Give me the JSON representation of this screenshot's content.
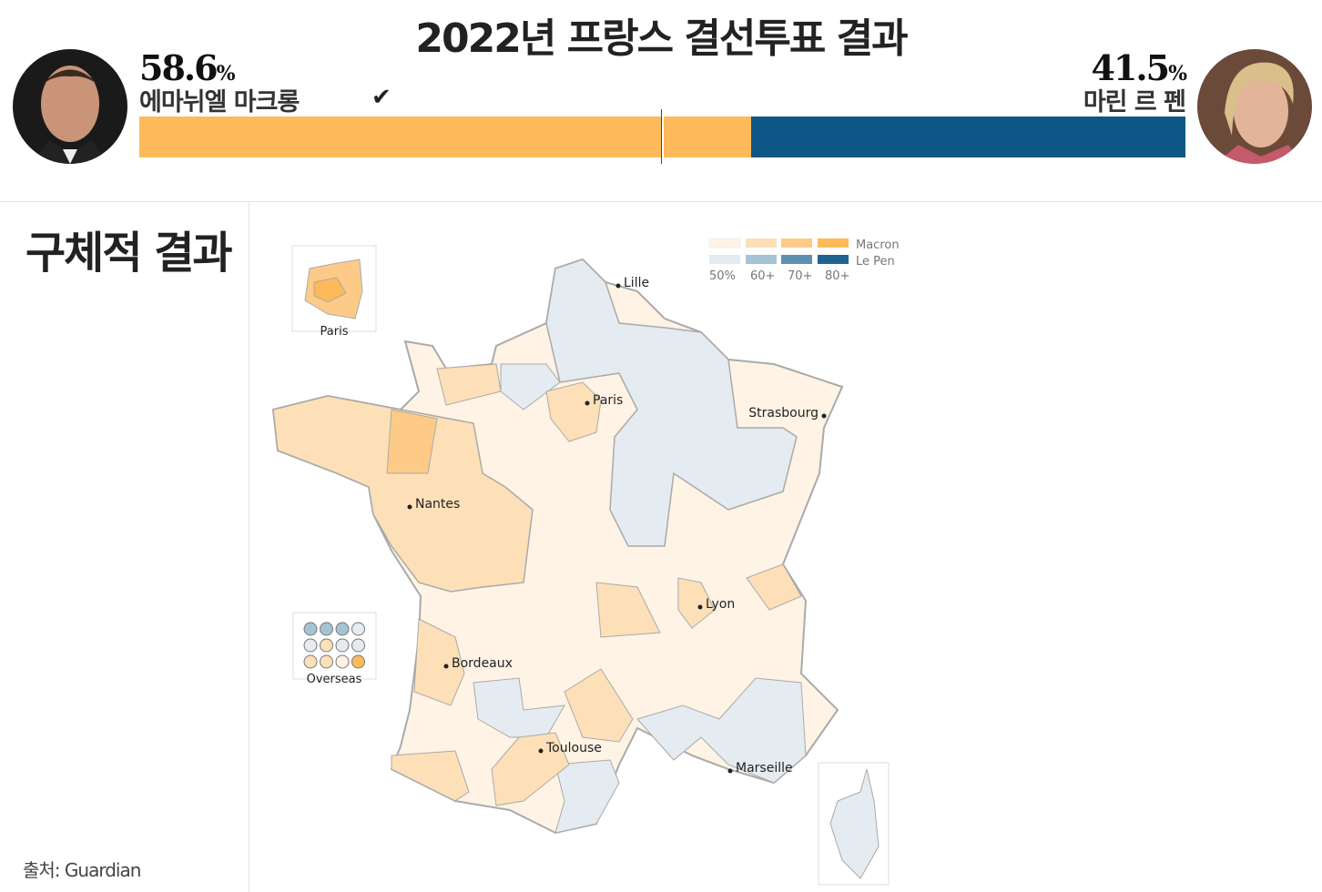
{
  "title": "2022년 프랑스 결선투표 결과",
  "candidates": [
    {
      "name": "에마뉘엘 마크롱",
      "percent": "58.6",
      "unit": "%",
      "winner": true,
      "color": "#fdb95a",
      "photo": "macron-photo"
    },
    {
      "name": "마린 르 펜",
      "percent": "41.5",
      "unit": "%",
      "winner": false,
      "color": "#0e5685",
      "photo": "le-pen-photo"
    }
  ],
  "subtitle": "구체적 결과",
  "source": "출처: Guardian",
  "legend": {
    "series": [
      "Macron",
      "Le Pen"
    ],
    "bins": [
      "50%",
      "60+",
      "70+",
      "80+"
    ],
    "macron_colors": [
      "#fef3e4",
      "#fde0b8",
      "#fdcb87",
      "#fdb95a"
    ],
    "lepen_colors": [
      "#e4ebf1",
      "#a6c3d6",
      "#5e8fb0",
      "#1f6491"
    ]
  },
  "map": {
    "cities": [
      "Lille",
      "Paris",
      "Strasbourg",
      "Nantes",
      "Lyon",
      "Bordeaux",
      "Toulouse",
      "Marseille"
    ],
    "insets": [
      "Paris",
      "Overseas"
    ]
  }
}
